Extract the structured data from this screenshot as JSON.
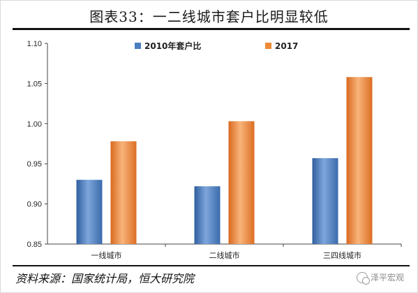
{
  "header": {
    "title": "图表33：一二线城市套户比明显较低"
  },
  "footer": {
    "source": "资料来源：国家统计局，恒大研究院",
    "watermark": "泽平宏观"
  },
  "colors": {
    "series_2010": "#4a7fc1",
    "series_2017": "#ee8a3a",
    "axis": "#444444"
  },
  "chart_data": {
    "type": "bar",
    "categories": [
      "一线城市",
      "二线城市",
      "三四线城市"
    ],
    "series": [
      {
        "name": "2010年套户比",
        "values": [
          0.93,
          0.922,
          0.957
        ]
      },
      {
        "name": "2017",
        "values": [
          0.978,
          1.003,
          1.058
        ]
      }
    ],
    "ylim": [
      0.85,
      1.1
    ],
    "yticks": [
      "0.85",
      "0.90",
      "0.95",
      "1.00",
      "1.05",
      "1.10"
    ],
    "legend_position": "top-center",
    "grid": false
  }
}
